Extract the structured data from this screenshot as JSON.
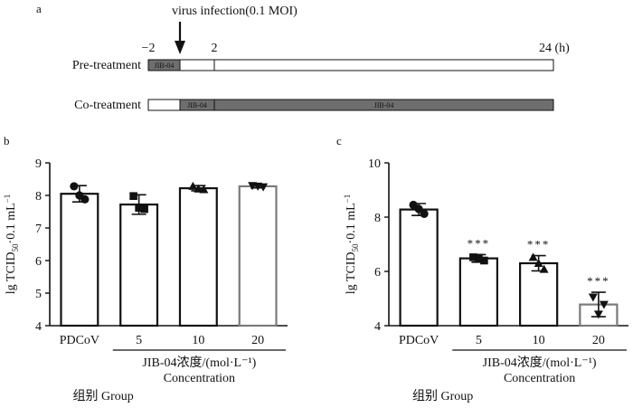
{
  "panel_a": {
    "letter": "a",
    "infection_label": "virus infection(0.1 MOI)",
    "time_ticks": [
      {
        "t": -2,
        "label": "−2"
      },
      {
        "t": 2,
        "label": "2"
      },
      {
        "t": 24,
        "label": "24 (h)"
      }
    ],
    "rows": [
      {
        "label": "Pre-treatment",
        "segments": [
          {
            "from": -2,
            "to": 0,
            "shade": "gray",
            "text": "JIB-04"
          },
          {
            "from": 0,
            "to": 2,
            "shade": "white",
            "text": ""
          },
          {
            "from": 2,
            "to": 24,
            "shade": "white",
            "text": ""
          }
        ]
      },
      {
        "label": "Co-treatment",
        "segments": [
          {
            "from": -2,
            "to": 0,
            "shade": "white",
            "text": ""
          },
          {
            "from": 0,
            "to": 2,
            "shade": "gray",
            "text": "JIB-04"
          },
          {
            "from": 2,
            "to": 24,
            "shade": "gray",
            "text": "JIB-04"
          }
        ]
      }
    ]
  },
  "colors": {
    "gray_bar": "#6e6e6e",
    "bar_outline": "#111111",
    "last_bar_outline": "#7a7a7a"
  },
  "chart_data": [
    {
      "type": "bar",
      "panel": "b",
      "ylabel": "lg TCID",
      "ylabel_sub": "50",
      "ylabel_unit": "·0.1 mL",
      "ylabel_sup": "−1",
      "ylim": [
        4,
        9
      ],
      "yticks": [
        4,
        5,
        6,
        7,
        8,
        9
      ],
      "categories": [
        "PDCoV",
        "5",
        "10",
        "20"
      ],
      "values": [
        8.05,
        7.72,
        8.22,
        8.28
      ],
      "errors": [
        0.25,
        0.3,
        0.08,
        0.05
      ],
      "points": [
        [
          8.28,
          7.88,
          8.0
        ],
        [
          7.98,
          7.58,
          7.62
        ],
        [
          8.28,
          8.18,
          8.2
        ],
        [
          8.3,
          8.26,
          8.28
        ]
      ],
      "markers": [
        "circle",
        "square",
        "triangle-up",
        "triangle-down"
      ],
      "significance": [
        "",
        "",
        "",
        ""
      ],
      "xlabel_lines": [
        "JIB-04浓度/(mol·L⁻¹)",
        "Concentration",
        "组别 Group"
      ]
    },
    {
      "type": "bar",
      "panel": "c",
      "ylabel": "lg TCID",
      "ylabel_sub": "50",
      "ylabel_unit": "·0.1 mL",
      "ylabel_sup": "−1",
      "ylim": [
        4,
        10
      ],
      "yticks": [
        4,
        6,
        8,
        10
      ],
      "categories": [
        "PDCoV",
        "5",
        "10",
        "20"
      ],
      "values": [
        8.28,
        6.48,
        6.3,
        4.78
      ],
      "errors": [
        0.22,
        0.14,
        0.28,
        0.45
      ],
      "points": [
        [
          8.45,
          8.12,
          8.3
        ],
        [
          6.52,
          6.4,
          6.5
        ],
        [
          6.52,
          6.08,
          6.3
        ],
        [
          5.05,
          4.78,
          4.42
        ]
      ],
      "markers": [
        "circle",
        "square",
        "triangle-up",
        "triangle-down"
      ],
      "significance": [
        "",
        "***",
        "***",
        "***"
      ],
      "xlabel_lines": [
        "JIB-04浓度/(mol·L⁻¹)",
        "Concentration",
        "组别 Group"
      ]
    }
  ]
}
